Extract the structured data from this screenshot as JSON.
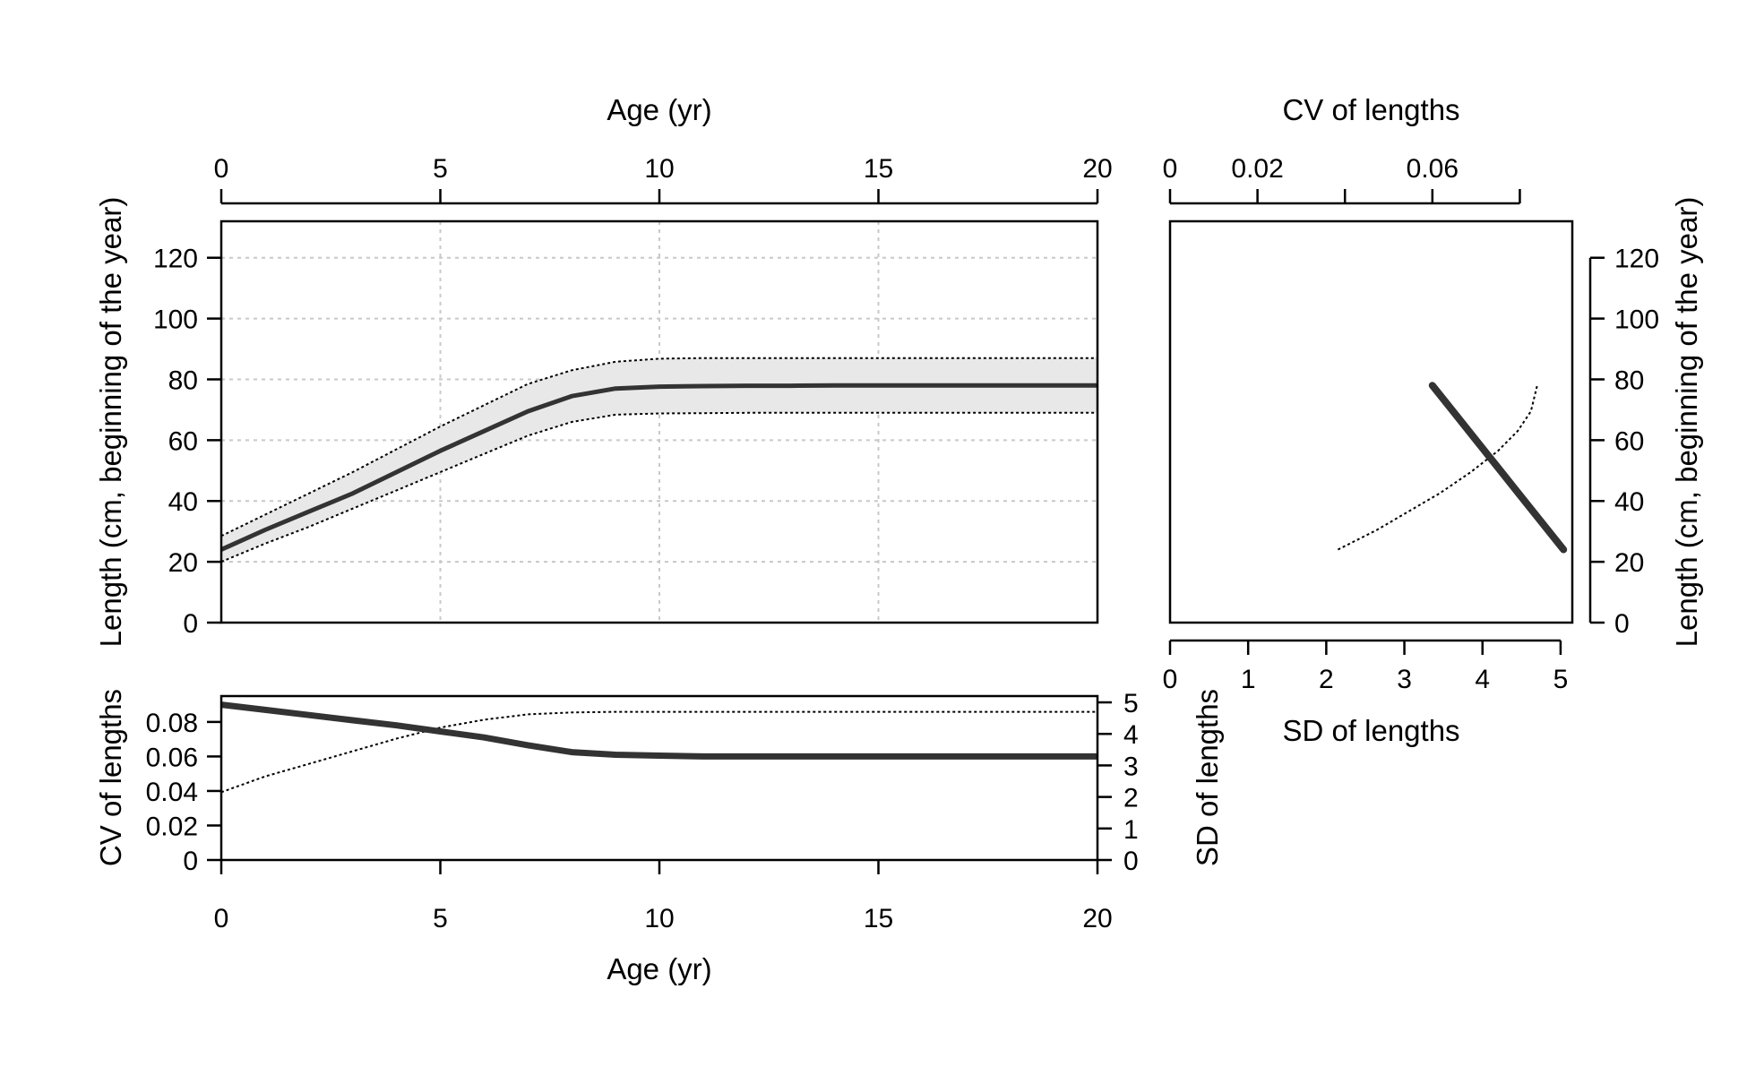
{
  "colors": {
    "mean_line": "#333333",
    "band_fill": "#e8e8e8",
    "dotted": "#000000",
    "grid": "#c8c8c8",
    "axis": "#000000"
  },
  "chart_data": [
    {
      "id": "growth-panel",
      "type": "line",
      "xlabel": "Age (yr)",
      "ylabel": "Length (cm, beginning of the year)",
      "xlim": [
        0,
        20
      ],
      "ylim": [
        0,
        132
      ],
      "xticks": [
        "0",
        "5",
        "10",
        "15",
        "20"
      ],
      "yticks": [
        "0",
        "20",
        "40",
        "60",
        "80",
        "100",
        "120"
      ],
      "grid": true,
      "x": [
        0,
        1,
        2,
        3,
        4,
        5,
        6,
        7,
        8,
        9,
        10,
        11,
        12,
        13,
        14,
        15,
        16,
        17,
        18,
        19,
        20
      ],
      "series": [
        {
          "role": "mean",
          "style": "solid",
          "values": [
            24,
            30.5,
            36.5,
            42.5,
            49.5,
            56.5,
            63,
            69.5,
            74.5,
            77,
            77.6,
            77.8,
            77.9,
            77.9,
            78,
            78,
            78,
            78,
            78,
            78,
            78
          ]
        },
        {
          "role": "upper",
          "style": "dotted",
          "values": [
            28.5,
            35.5,
            42.5,
            49.5,
            57,
            64.5,
            71.5,
            78.5,
            83,
            85.8,
            86.8,
            87,
            87,
            87,
            87,
            87,
            87,
            87,
            87,
            87,
            87
          ]
        },
        {
          "role": "lower",
          "style": "dotted",
          "values": [
            20,
            26,
            31.5,
            37.5,
            43.5,
            49.5,
            55.5,
            61.5,
            66,
            68.4,
            68.8,
            68.9,
            69,
            69,
            69,
            69,
            69,
            69,
            69,
            69,
            69
          ]
        }
      ]
    },
    {
      "id": "cv-sd-by-age-panel",
      "type": "line",
      "xlabel": "Age (yr)",
      "ylabel_left": "CV of lengths",
      "ylabel_right": "SD of lengths",
      "xlim": [
        0,
        20
      ],
      "ylim_left": [
        0,
        0.095
      ],
      "ylim_right": [
        0,
        5.2
      ],
      "xticks": [
        "0",
        "5",
        "10",
        "15",
        "20"
      ],
      "yticks_left": [
        "0",
        "0.02",
        "0.04",
        "0.06",
        "0.08"
      ],
      "yticks_right": [
        "0",
        "1",
        "2",
        "3",
        "4",
        "5"
      ],
      "x": [
        0,
        1,
        2,
        3,
        4,
        5,
        6,
        7,
        8,
        9,
        10,
        11,
        12,
        13,
        14,
        15,
        16,
        17,
        18,
        19,
        20
      ],
      "series": [
        {
          "role": "CV",
          "axis": "left",
          "style": "solid",
          "values": [
            0.09,
            0.087,
            0.084,
            0.081,
            0.078,
            0.0745,
            0.071,
            0.0665,
            0.0625,
            0.061,
            0.0605,
            0.06,
            0.06,
            0.06,
            0.06,
            0.06,
            0.06,
            0.06,
            0.06,
            0.06,
            0.06
          ]
        },
        {
          "role": "SD",
          "axis": "right",
          "style": "dotted",
          "values": [
            2.15,
            2.65,
            3.05,
            3.45,
            3.85,
            4.2,
            4.45,
            4.62,
            4.68,
            4.7,
            4.7,
            4.7,
            4.7,
            4.7,
            4.7,
            4.7,
            4.7,
            4.7,
            4.7,
            4.7,
            4.7
          ]
        }
      ]
    },
    {
      "id": "length-vs-variability-panel",
      "type": "line",
      "xlabel_top": "CV of lengths",
      "xlabel_bottom": "SD of lengths",
      "ylabel": "Length (cm, beginning of the year)",
      "xlim_top": [
        0,
        0.092
      ],
      "xlim_bottom": [
        0,
        5.15
      ],
      "ylim": [
        0,
        132
      ],
      "xticks_top": [
        "0",
        "0.02",
        "",
        "0.06",
        ""
      ],
      "xtick_values_top": [
        0,
        0.02,
        0.04,
        0.06,
        0.08
      ],
      "xticks_bottom": [
        "0",
        "1",
        "2",
        "3",
        "4",
        "5"
      ],
      "yticks": [
        "0",
        "20",
        "40",
        "60",
        "80",
        "100",
        "120"
      ],
      "series": [
        {
          "role": "CV",
          "axis": "top",
          "style": "solid",
          "x": [
            0.09,
            0.085,
            0.08,
            0.075,
            0.07,
            0.065,
            0.06
          ],
          "y": [
            24,
            33,
            42,
            51,
            60,
            69,
            78
          ]
        },
        {
          "role": "SD",
          "axis": "bottom",
          "style": "dotted",
          "x": [
            2.15,
            2.65,
            3.05,
            3.45,
            3.85,
            4.2,
            4.45,
            4.62,
            4.7
          ],
          "y": [
            24,
            30.5,
            36.5,
            42.5,
            49.5,
            56.5,
            63,
            69.5,
            78
          ]
        }
      ]
    }
  ]
}
